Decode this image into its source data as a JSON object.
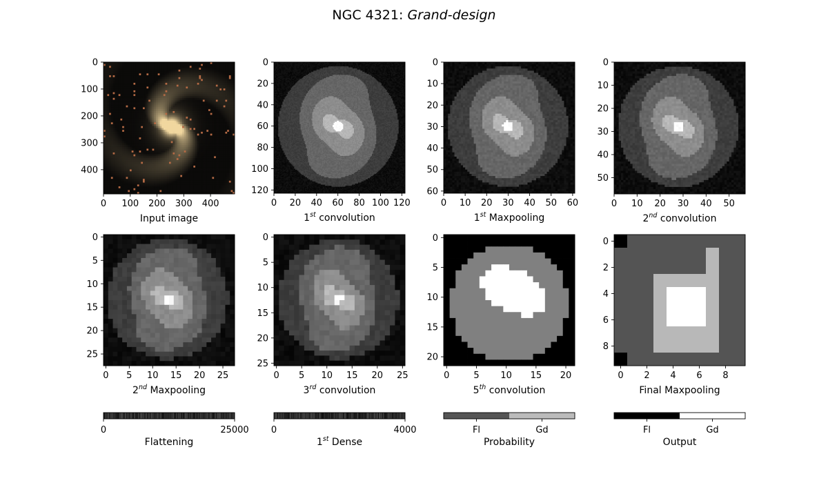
{
  "figure": {
    "title_main": "NGC 4321: ",
    "title_italic": "Grand-design"
  },
  "chart_data": [
    {
      "type": "heatmap",
      "name": "input-image",
      "caption": "Input image",
      "xlim": [
        0,
        490
      ],
      "ylim": [
        490,
        0
      ],
      "xticks": [
        0,
        100,
        200,
        300,
        400
      ],
      "yticks": [
        0,
        100,
        200,
        300,
        400
      ],
      "grid": false,
      "colors": {
        "background": "#0b0a09",
        "core": "#ffe9b0",
        "arms": "#b8a27a"
      }
    },
    {
      "type": "heatmap",
      "name": "conv1",
      "caption": {
        "prefix": "1",
        "sup": "st",
        "suffix": " convolution"
      },
      "xlim": [
        0,
        123
      ],
      "ylim": [
        123,
        0
      ],
      "xticks": [
        0,
        20,
        40,
        60,
        80,
        100,
        120
      ],
      "yticks": [
        0,
        20,
        40,
        60,
        80,
        100,
        120
      ],
      "grid": false
    },
    {
      "type": "heatmap",
      "name": "maxpool1",
      "caption": {
        "prefix": "1",
        "sup": "st",
        "suffix": " Maxpooling"
      },
      "xlim": [
        0,
        61
      ],
      "ylim": [
        61,
        0
      ],
      "xticks": [
        0,
        10,
        20,
        30,
        40,
        50,
        60
      ],
      "yticks": [
        0,
        10,
        20,
        30,
        40,
        50,
        60
      ],
      "grid": false
    },
    {
      "type": "heatmap",
      "name": "conv2",
      "caption": {
        "prefix": "2",
        "sup": "nd",
        "suffix": " convolution"
      },
      "xlim": [
        0,
        57
      ],
      "ylim": [
        57,
        0
      ],
      "xticks": [
        0,
        10,
        20,
        30,
        40,
        50
      ],
      "yticks": [
        0,
        10,
        20,
        30,
        40,
        50
      ],
      "grid": false
    },
    {
      "type": "heatmap",
      "name": "maxpool2",
      "caption": {
        "prefix": "2",
        "sup": "nd",
        "suffix": " Maxpooling"
      },
      "xlim": [
        -0.5,
        27.5
      ],
      "ylim": [
        27.5,
        -0.5
      ],
      "xticks": [
        0,
        5,
        10,
        15,
        20,
        25
      ],
      "yticks": [
        0,
        5,
        10,
        15,
        20,
        25
      ],
      "grid": false
    },
    {
      "type": "heatmap",
      "name": "conv3",
      "caption": {
        "prefix": "3",
        "sup": "rd",
        "suffix": " convolution"
      },
      "xlim": [
        -0.5,
        25.5
      ],
      "ylim": [
        25.5,
        -0.5
      ],
      "xticks": [
        0,
        5,
        10,
        15,
        20,
        25
      ],
      "yticks": [
        0,
        5,
        10,
        15,
        20,
        25
      ],
      "grid": false
    },
    {
      "type": "heatmap",
      "name": "conv5",
      "caption": {
        "prefix": "5",
        "sup": "th",
        "suffix": " convolution"
      },
      "xlim": [
        -0.5,
        21.5
      ],
      "ylim": [
        21.5,
        -0.5
      ],
      "xticks": [
        0,
        5,
        10,
        15,
        20
      ],
      "yticks": [
        0,
        5,
        10,
        15,
        20
      ],
      "grid": false
    },
    {
      "type": "heatmap",
      "name": "final-maxpool",
      "caption": "Final Maxpooling",
      "xlim": [
        -0.5,
        9.5
      ],
      "ylim": [
        9.5,
        -0.5
      ],
      "xticks": [
        0,
        2,
        4,
        6,
        8
      ],
      "yticks": [
        0,
        2,
        4,
        6,
        8
      ],
      "grid": false
    },
    {
      "type": "heatmap",
      "name": "flattening",
      "caption": "Flattening",
      "xlim": [
        0,
        25000
      ],
      "xticks": [
        0,
        25000
      ]
    },
    {
      "type": "heatmap",
      "name": "dense1",
      "caption": {
        "prefix": "1",
        "sup": "st",
        "suffix": " Dense"
      },
      "xlim": [
        0,
        4000
      ],
      "xticks": [
        0,
        4000
      ]
    },
    {
      "type": "heatmap",
      "name": "probability",
      "caption": "Probability",
      "categories": [
        "Fl",
        "Gd"
      ],
      "colors": [
        "#555555",
        "#bbbbbb"
      ]
    },
    {
      "type": "heatmap",
      "name": "output",
      "caption": "Output",
      "categories": [
        "Fl",
        "Gd"
      ],
      "colors": [
        "#000000",
        "#ffffff"
      ]
    }
  ]
}
